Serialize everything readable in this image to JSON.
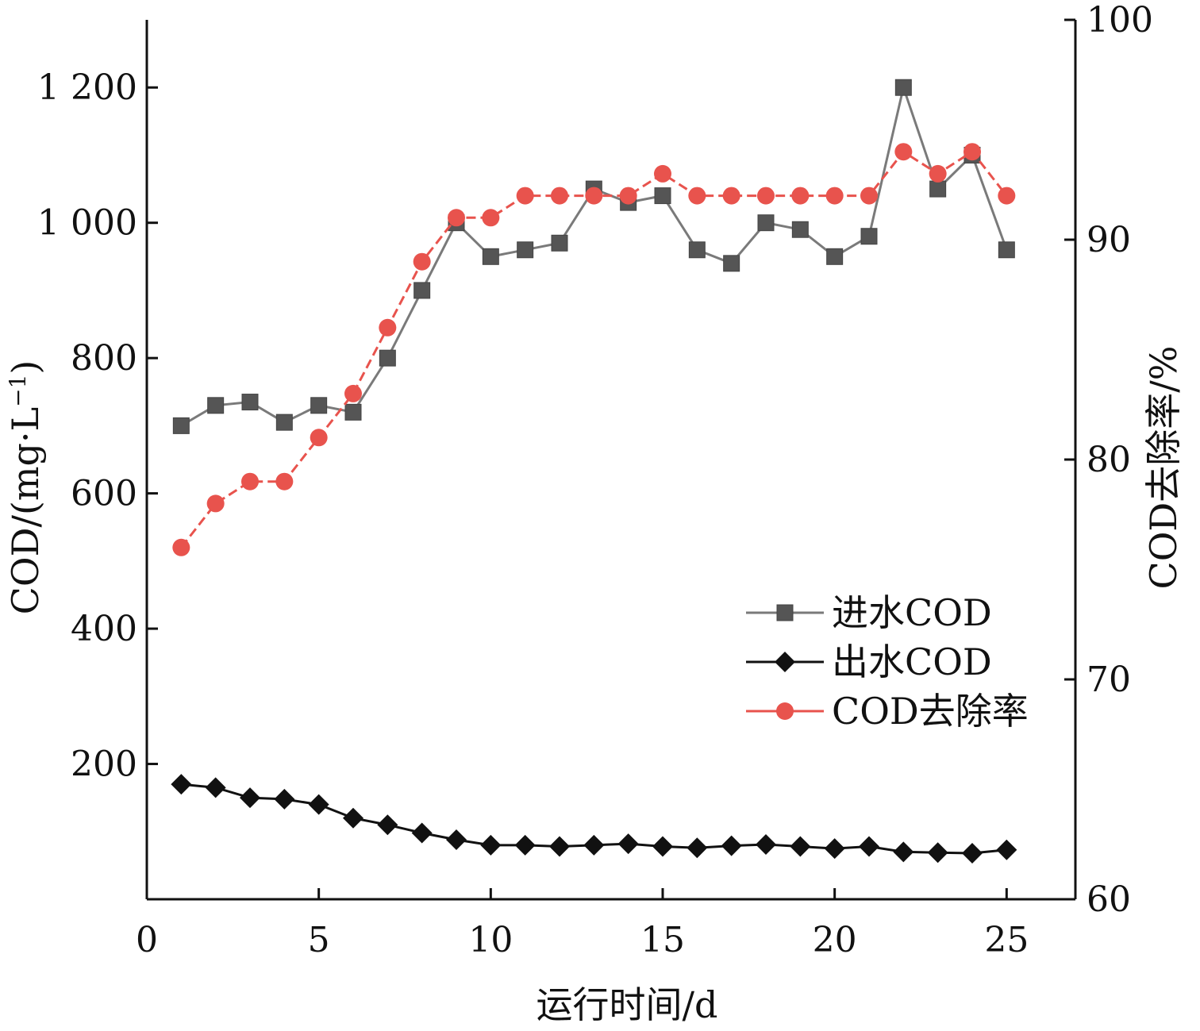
{
  "chart_data": {
    "type": "line",
    "xlabel": "运行时间/d",
    "ylabel_left": "COD/(mg·L",
    "ylabel_left_sup": "−1",
    "ylabel_left_close": ")",
    "ylabel_right": "COD去除率/%",
    "xlim": [
      0,
      27
    ],
    "ylim_left": [
      0,
      1300
    ],
    "ylim_right": [
      60,
      100
    ],
    "x_ticks": [
      0,
      5,
      10,
      15,
      20,
      25
    ],
    "x_tick_labels": [
      "0",
      "5",
      "10",
      "15",
      "20",
      "25"
    ],
    "y_left_ticks": [
      200,
      400,
      600,
      800,
      1000,
      1200
    ],
    "y_left_tick_labels": [
      "200",
      "400",
      "600",
      "800",
      "1 000",
      "1 200"
    ],
    "y_right_ticks": [
      60,
      70,
      80,
      90,
      100
    ],
    "y_right_tick_labels": [
      "60",
      "70",
      "80",
      "90",
      "100"
    ],
    "grid": false,
    "legend_position": "right-middle",
    "x": [
      1,
      2,
      3,
      4,
      5,
      6,
      7,
      8,
      9,
      10,
      11,
      12,
      13,
      14,
      15,
      16,
      17,
      18,
      19,
      20,
      21,
      22,
      23,
      24,
      25
    ],
    "series": [
      {
        "name": "进水COD",
        "axis": "left",
        "marker": "square",
        "color": "#7a7a7a",
        "marker_color": "#555555",
        "dashed": false,
        "values": [
          700,
          730,
          735,
          705,
          730,
          720,
          800,
          900,
          1000,
          950,
          960,
          970,
          1050,
          1030,
          1040,
          960,
          940,
          1000,
          990,
          950,
          980,
          1200,
          1050,
          1100,
          960
        ]
      },
      {
        "name": "出水COD",
        "axis": "left",
        "marker": "diamond",
        "color": "#111111",
        "marker_color": "#111111",
        "dashed": false,
        "values": [
          170,
          165,
          150,
          148,
          140,
          120,
          110,
          98,
          88,
          80,
          80,
          78,
          80,
          82,
          78,
          76,
          79,
          81,
          78,
          75,
          78,
          70,
          69,
          68,
          73
        ]
      },
      {
        "name": "COD去除率",
        "axis": "right",
        "marker": "circle",
        "color": "#e8534d",
        "marker_color": "#e8534d",
        "dashed": true,
        "values": [
          76,
          78,
          79,
          79,
          81,
          83,
          86,
          89,
          91,
          91,
          92,
          92,
          92,
          92,
          93,
          92,
          92,
          92,
          92,
          92,
          92,
          94,
          93,
          94,
          92
        ]
      }
    ]
  }
}
